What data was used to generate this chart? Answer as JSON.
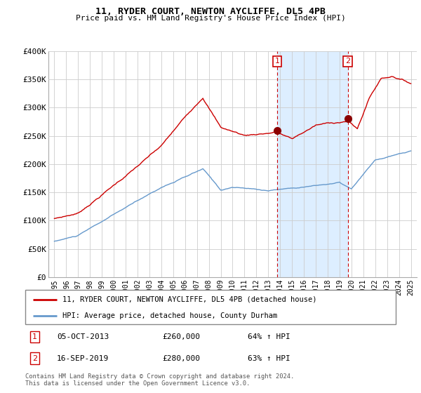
{
  "title": "11, RYDER COURT, NEWTON AYCLIFFE, DL5 4PB",
  "subtitle": "Price paid vs. HM Land Registry's House Price Index (HPI)",
  "legend_line1": "11, RYDER COURT, NEWTON AYCLIFFE, DL5 4PB (detached house)",
  "legend_line2": "HPI: Average price, detached house, County Durham",
  "annotation1_date": "05-OCT-2013",
  "annotation1_price": "£260,000",
  "annotation1_hpi": "64% ↑ HPI",
  "annotation2_date": "16-SEP-2019",
  "annotation2_price": "£280,000",
  "annotation2_hpi": "63% ↑ HPI",
  "footer": "Contains HM Land Registry data © Crown copyright and database right 2024.\nThis data is licensed under the Open Government Licence v3.0.",
  "red_color": "#cc0000",
  "blue_color": "#6699cc",
  "shade_color": "#ddeeff",
  "grid_color": "#cccccc",
  "ylim": [
    0,
    400000
  ],
  "yticks": [
    0,
    50000,
    100000,
    150000,
    200000,
    250000,
    300000,
    350000,
    400000
  ],
  "sale1_x": 2013.75,
  "sale1_y": 260000,
  "sale2_x": 2019.7,
  "sale2_y": 280000,
  "xmin": 1994.5,
  "xmax": 2025.5
}
